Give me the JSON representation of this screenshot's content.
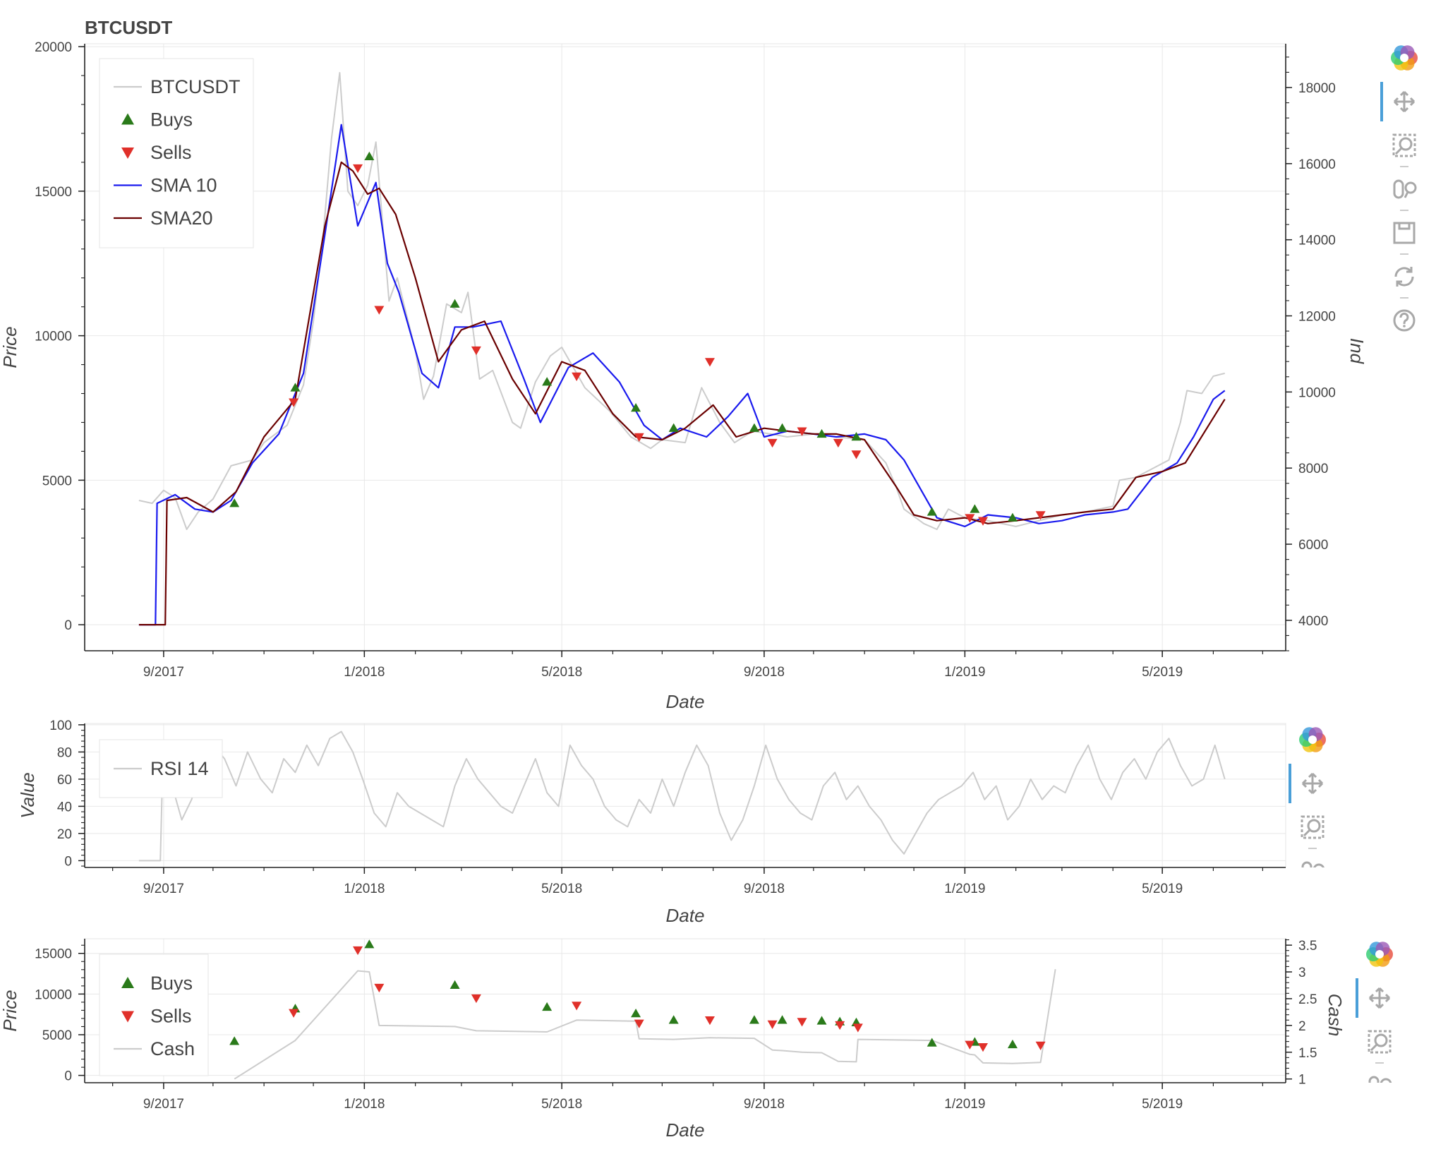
{
  "colors": {
    "price": "#cccccc",
    "buy": "#2a7a1a",
    "sell": "#e0302a",
    "sma10": "#1a1aee",
    "sma20": "#6a0000",
    "rsi": "#cccccc",
    "cash": "#cccccc",
    "toolbar_active": "#4a9fd8"
  },
  "toolbar_icons": [
    "bokeh-logo-icon",
    "pan-icon",
    "box-zoom-icon",
    "wheel-zoom-icon",
    "save-icon",
    "reset-icon",
    "help-icon"
  ],
  "chart_data": [
    {
      "type": "line",
      "title": "BTCUSDT",
      "xlabel": "Date",
      "ylabel": "Price",
      "y2label": "Ind",
      "x_ticks": [
        "9/2017",
        "1/2018",
        "5/2018",
        "9/2018",
        "1/2019",
        "5/2019"
      ],
      "x_tick_dates": [
        "2017-09-01",
        "2018-01-01",
        "2018-05-01",
        "2018-09-01",
        "2019-01-01",
        "2019-05-01"
      ],
      "xlim": [
        "2017-07-15",
        "2019-07-15"
      ],
      "y_ticks": [
        0,
        5000,
        10000,
        15000,
        20000
      ],
      "ylim": [
        -900,
        20100
      ],
      "y2_ticks": [
        4000,
        6000,
        8000,
        10000,
        12000,
        14000,
        16000,
        18000
      ],
      "y2lim": [
        3200,
        19150
      ],
      "legend": {
        "position": "top-left",
        "entries": [
          "BTCUSDT",
          "Buys",
          "Sells",
          "SMA 10",
          "SMA20"
        ]
      },
      "series": [
        {
          "name": "BTCUSDT",
          "role": "price",
          "x": [
            "2017-08-17",
            "2017-08-25",
            "2017-09-01",
            "2017-09-08",
            "2017-09-15",
            "2017-09-22",
            "2017-10-01",
            "2017-10-12",
            "2017-10-25",
            "2017-11-01",
            "2017-11-15",
            "2017-11-25",
            "2017-12-01",
            "2017-12-07",
            "2017-12-12",
            "2017-12-17",
            "2017-12-22",
            "2017-12-28",
            "2018-01-03",
            "2018-01-08",
            "2018-01-16",
            "2018-01-21",
            "2018-02-01",
            "2018-02-06",
            "2018-02-12",
            "2018-02-20",
            "2018-03-01",
            "2018-03-05",
            "2018-03-12",
            "2018-03-20",
            "2018-04-01",
            "2018-04-06",
            "2018-04-15",
            "2018-04-24",
            "2018-05-01",
            "2018-05-15",
            "2018-05-30",
            "2018-06-12",
            "2018-06-24",
            "2018-07-01",
            "2018-07-15",
            "2018-07-25",
            "2018-08-05",
            "2018-08-14",
            "2018-08-25",
            "2018-09-05",
            "2018-09-15",
            "2018-10-01",
            "2018-10-15",
            "2018-11-01",
            "2018-11-14",
            "2018-11-20",
            "2018-11-25",
            "2018-12-07",
            "2018-12-15",
            "2018-12-22",
            "2019-01-01",
            "2019-01-15",
            "2019-02-01",
            "2019-02-15",
            "2019-03-01",
            "2019-03-15",
            "2019-04-01",
            "2019-04-05",
            "2019-04-15",
            "2019-04-25",
            "2019-05-05",
            "2019-05-12",
            "2019-05-16",
            "2019-05-25",
            "2019-06-01",
            "2019-06-08"
          ],
          "values": [
            4300,
            4200,
            4650,
            4400,
            3300,
            3900,
            4350,
            5500,
            5700,
            6300,
            6900,
            8300,
            10500,
            13500,
            16800,
            19100,
            15000,
            14500,
            15200,
            16700,
            11200,
            12000,
            9500,
            7800,
            8600,
            11100,
            10800,
            11500,
            8500,
            8800,
            7000,
            6800,
            8400,
            9300,
            9600,
            8200,
            7400,
            6500,
            6100,
            6400,
            6300,
            8200,
            7000,
            6300,
            6700,
            6600,
            6500,
            6600,
            6500,
            6400,
            5600,
            4800,
            4000,
            3500,
            3300,
            4000,
            3700,
            3600,
            3400,
            3600,
            3800,
            3900,
            4100,
            5000,
            5100,
            5400,
            5700,
            7000,
            8100,
            8000,
            8600,
            8700
          ]
        },
        {
          "name": "SMA 10",
          "role": "sma10",
          "x": [
            "2017-08-17",
            "2017-08-27",
            "2017-08-28",
            "2017-09-08",
            "2017-09-20",
            "2017-10-01",
            "2017-10-12",
            "2017-10-25",
            "2017-11-10",
            "2017-11-25",
            "2017-12-08",
            "2017-12-18",
            "2017-12-28",
            "2018-01-08",
            "2018-01-15",
            "2018-01-22",
            "2018-02-05",
            "2018-02-15",
            "2018-02-25",
            "2018-03-08",
            "2018-03-25",
            "2018-04-08",
            "2018-04-18",
            "2018-05-05",
            "2018-05-20",
            "2018-06-05",
            "2018-06-20",
            "2018-07-01",
            "2018-07-12",
            "2018-07-28",
            "2018-08-10",
            "2018-08-22",
            "2018-09-01",
            "2018-09-15",
            "2018-10-01",
            "2018-10-15",
            "2018-11-01",
            "2018-11-14",
            "2018-11-25",
            "2018-12-07",
            "2018-12-15",
            "2019-01-01",
            "2019-01-15",
            "2019-02-01",
            "2019-02-15",
            "2019-03-01",
            "2019-03-15",
            "2019-04-01",
            "2019-04-10",
            "2019-04-25",
            "2019-05-10",
            "2019-05-20",
            "2019-06-01",
            "2019-06-08"
          ],
          "values": [
            0,
            0,
            4200,
            4500,
            4000,
            3900,
            4300,
            5600,
            6600,
            8700,
            13500,
            17300,
            13800,
            15300,
            12500,
            11500,
            8700,
            8200,
            10300,
            10300,
            10500,
            8500,
            7000,
            8900,
            9400,
            8400,
            6900,
            6400,
            6800,
            6500,
            7200,
            8000,
            6500,
            6700,
            6600,
            6500,
            6600,
            6400,
            5700,
            4500,
            3700,
            3400,
            3800,
            3700,
            3500,
            3600,
            3800,
            3900,
            4000,
            5100,
            5600,
            6500,
            7800,
            8100
          ]
        },
        {
          "name": "SMA20",
          "role": "sma20",
          "x": [
            "2017-08-17",
            "2017-09-02",
            "2017-09-03",
            "2017-09-15",
            "2017-10-01",
            "2017-10-15",
            "2017-11-01",
            "2017-11-20",
            "2017-12-08",
            "2017-12-18",
            "2017-12-25",
            "2018-01-03",
            "2018-01-10",
            "2018-01-20",
            "2018-02-01",
            "2018-02-15",
            "2018-03-01",
            "2018-03-15",
            "2018-04-01",
            "2018-04-15",
            "2018-05-01",
            "2018-05-15",
            "2018-06-01",
            "2018-06-15",
            "2018-07-01",
            "2018-07-15",
            "2018-08-01",
            "2018-08-15",
            "2018-09-01",
            "2018-09-15",
            "2018-10-01",
            "2018-10-15",
            "2018-11-01",
            "2018-11-20",
            "2018-12-01",
            "2018-12-15",
            "2019-01-01",
            "2019-01-15",
            "2019-02-01",
            "2019-02-15",
            "2019-03-01",
            "2019-03-15",
            "2019-04-01",
            "2019-04-15",
            "2019-05-01",
            "2019-05-15",
            "2019-06-08"
          ],
          "values": [
            0,
            0,
            4300,
            4400,
            3900,
            4600,
            6500,
            7800,
            13800,
            16000,
            15700,
            14900,
            15100,
            14200,
            12000,
            9100,
            10200,
            10500,
            8500,
            7300,
            9100,
            8800,
            7300,
            6500,
            6400,
            6800,
            7600,
            6500,
            6800,
            6700,
            6600,
            6600,
            6400,
            4800,
            3800,
            3600,
            3700,
            3500,
            3600,
            3700,
            3800,
            3900,
            4000,
            5100,
            5300,
            5600,
            7800
          ]
        },
        {
          "name": "Buys",
          "role": "buy",
          "x": [
            "2017-10-14",
            "2017-11-20",
            "2018-01-04",
            "2018-02-25",
            "2018-04-22",
            "2018-06-15",
            "2018-07-08",
            "2018-08-26",
            "2018-09-12",
            "2018-10-06",
            "2018-10-27",
            "2018-12-12",
            "2019-01-07",
            "2019-01-30"
          ],
          "values": [
            4200,
            8200,
            16200,
            11100,
            8400,
            7500,
            6800,
            6800,
            6800,
            6600,
            6500,
            3900,
            4000,
            3700
          ]
        },
        {
          "name": "Sells",
          "role": "sell",
          "x": [
            "2017-11-19",
            "2017-12-28",
            "2018-01-10",
            "2018-03-10",
            "2018-05-10",
            "2018-06-17",
            "2018-07-30",
            "2018-09-06",
            "2018-09-24",
            "2018-10-16",
            "2018-10-27",
            "2019-01-04",
            "2019-01-12",
            "2019-02-16"
          ],
          "values": [
            7700,
            15800,
            10900,
            9500,
            8600,
            6500,
            9100,
            6300,
            6700,
            6300,
            5900,
            3700,
            3600,
            3800
          ]
        }
      ]
    },
    {
      "type": "line",
      "xlabel": "Date",
      "ylabel": "Value",
      "x_ticks": [
        "9/2017",
        "1/2018",
        "5/2018",
        "9/2018",
        "1/2019",
        "5/2019"
      ],
      "x_tick_dates": [
        "2017-09-01",
        "2018-01-01",
        "2018-05-01",
        "2018-09-01",
        "2019-01-01",
        "2019-05-01"
      ],
      "xlim": [
        "2017-07-15",
        "2019-07-15"
      ],
      "y_ticks": [
        0,
        20,
        40,
        60,
        80,
        100
      ],
      "ylim": [
        -5,
        101
      ],
      "legend": {
        "position": "top-left",
        "entries": [
          "RSI 14"
        ]
      },
      "series": [
        {
          "name": "RSI 14",
          "role": "rsi",
          "x": [
            "2017-08-17",
            "2017-08-30",
            "2017-08-31",
            "2017-09-05",
            "2017-09-12",
            "2017-09-18",
            "2017-09-25",
            "2017-10-01",
            "2017-10-08",
            "2017-10-15",
            "2017-10-22",
            "2017-10-30",
            "2017-11-06",
            "2017-11-13",
            "2017-11-20",
            "2017-11-27",
            "2017-12-04",
            "2017-12-11",
            "2017-12-18",
            "2017-12-25",
            "2017-12-31",
            "2018-01-07",
            "2018-01-14",
            "2018-01-21",
            "2018-01-28",
            "2018-02-04",
            "2018-02-11",
            "2018-02-18",
            "2018-02-25",
            "2018-03-04",
            "2018-03-11",
            "2018-03-18",
            "2018-03-25",
            "2018-04-01",
            "2018-04-08",
            "2018-04-15",
            "2018-04-22",
            "2018-04-29",
            "2018-05-06",
            "2018-05-13",
            "2018-05-20",
            "2018-05-27",
            "2018-06-03",
            "2018-06-10",
            "2018-06-17",
            "2018-06-24",
            "2018-07-01",
            "2018-07-08",
            "2018-07-15",
            "2018-07-22",
            "2018-07-29",
            "2018-08-05",
            "2018-08-12",
            "2018-08-19",
            "2018-08-26",
            "2018-09-02",
            "2018-09-09",
            "2018-09-16",
            "2018-09-23",
            "2018-09-30",
            "2018-10-07",
            "2018-10-14",
            "2018-10-21",
            "2018-10-28",
            "2018-11-04",
            "2018-11-11",
            "2018-11-18",
            "2018-11-25",
            "2018-12-02",
            "2018-12-09",
            "2018-12-16",
            "2018-12-23",
            "2018-12-30",
            "2019-01-06",
            "2019-01-13",
            "2019-01-20",
            "2019-01-27",
            "2019-02-03",
            "2019-02-10",
            "2019-02-17",
            "2019-02-24",
            "2019-03-03",
            "2019-03-10",
            "2019-03-17",
            "2019-03-24",
            "2019-03-31",
            "2019-04-07",
            "2019-04-14",
            "2019-04-21",
            "2019-04-28",
            "2019-05-05",
            "2019-05-12",
            "2019-05-19",
            "2019-05-26",
            "2019-06-02",
            "2019-06-08"
          ],
          "values": [
            0,
            0,
            50,
            60,
            30,
            45,
            70,
            85,
            75,
            55,
            80,
            60,
            50,
            75,
            65,
            85,
            70,
            90,
            95,
            80,
            60,
            35,
            25,
            50,
            40,
            35,
            30,
            25,
            55,
            75,
            60,
            50,
            40,
            35,
            55,
            75,
            50,
            40,
            85,
            70,
            60,
            40,
            30,
            25,
            45,
            35,
            60,
            40,
            65,
            85,
            70,
            35,
            15,
            30,
            55,
            85,
            60,
            45,
            35,
            30,
            55,
            65,
            45,
            55,
            40,
            30,
            15,
            5,
            20,
            35,
            45,
            50,
            55,
            65,
            45,
            55,
            30,
            40,
            60,
            45,
            55,
            50,
            70,
            85,
            60,
            45,
            65,
            75,
            60,
            80,
            90,
            70,
            55,
            60,
            85,
            60
          ]
        }
      ]
    },
    {
      "type": "line",
      "xlabel": "Date",
      "ylabel": "Price",
      "y2label": "Cash",
      "x_ticks": [
        "9/2017",
        "1/2018",
        "5/2018",
        "9/2018",
        "1/2019",
        "5/2019"
      ],
      "x_tick_dates": [
        "2017-09-01",
        "2018-01-01",
        "2018-05-01",
        "2018-09-01",
        "2019-01-01",
        "2019-05-01"
      ],
      "xlim": [
        "2017-07-15",
        "2019-07-15"
      ],
      "y_ticks": [
        0,
        5000,
        10000,
        15000
      ],
      "ylim": [
        -900,
        16800
      ],
      "y2_ticks": [
        1,
        1.5,
        2,
        2.5,
        3,
        3.5
      ],
      "y2_tick_labels": [
        "1",
        "1.5",
        "2",
        "2.5",
        "3",
        "3.5"
      ],
      "y2lim": [
        0.93,
        3.62
      ],
      "legend": {
        "position": "top-left",
        "entries": [
          "Buys",
          "Sells",
          "Cash"
        ]
      },
      "series": [
        {
          "name": "Cash",
          "role": "cash",
          "axis": "right",
          "x": [
            "2017-10-14",
            "2017-11-19",
            "2017-11-20",
            "2017-12-28",
            "2018-01-04",
            "2018-01-10",
            "2018-02-25",
            "2018-03-10",
            "2018-04-22",
            "2018-05-10",
            "2018-06-15",
            "2018-06-17",
            "2018-07-08",
            "2018-07-30",
            "2018-08-26",
            "2018-09-06",
            "2018-09-12",
            "2018-09-24",
            "2018-10-06",
            "2018-10-16",
            "2018-10-27",
            "2018-10-28",
            "2018-12-12",
            "2019-01-04",
            "2019-01-07",
            "2019-01-12",
            "2019-01-30",
            "2019-02-16",
            "2019-02-25"
          ],
          "values": [
            1.0,
            1.7,
            1.72,
            3.02,
            3.0,
            2.0,
            1.98,
            1.9,
            1.88,
            2.1,
            2.08,
            1.75,
            1.74,
            1.77,
            1.76,
            1.54,
            1.53,
            1.5,
            1.49,
            1.33,
            1.32,
            1.74,
            1.72,
            1.46,
            1.45,
            1.3,
            1.29,
            1.31,
            3.05
          ]
        },
        {
          "name": "Buys",
          "role": "buy",
          "x": [
            "2017-10-14",
            "2017-11-20",
            "2018-01-04",
            "2018-02-25",
            "2018-04-22",
            "2018-06-15",
            "2018-07-08",
            "2018-08-26",
            "2018-09-12",
            "2018-10-06",
            "2018-10-17",
            "2018-10-27",
            "2018-12-12",
            "2019-01-07",
            "2019-01-30"
          ],
          "values": [
            4200,
            8200,
            16100,
            11100,
            8400,
            7600,
            6800,
            6800,
            6800,
            6700,
            6600,
            6500,
            4000,
            4100,
            3800
          ]
        },
        {
          "name": "Sells",
          "role": "sell",
          "x": [
            "2017-11-19",
            "2017-12-28",
            "2018-01-10",
            "2018-03-10",
            "2018-05-10",
            "2018-06-17",
            "2018-07-30",
            "2018-09-06",
            "2018-09-24",
            "2018-10-17",
            "2018-10-28",
            "2019-01-04",
            "2019-01-12",
            "2019-02-16"
          ],
          "values": [
            7700,
            15400,
            10800,
            9500,
            8600,
            6400,
            6800,
            6300,
            6600,
            6200,
            5900,
            3800,
            3500,
            3700
          ]
        }
      ]
    }
  ]
}
